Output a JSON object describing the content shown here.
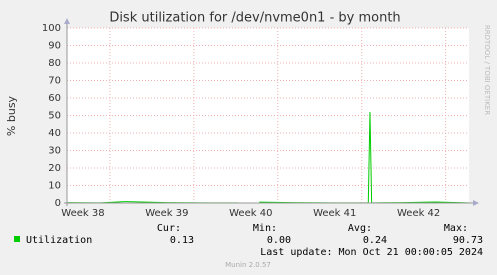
{
  "chart_data": {
    "type": "line",
    "title": "Disk utilization for /dev/nvme0n1 - by month",
    "y_label": "% busy",
    "side_text": "RRDTOOL / TOBI OETIKER",
    "xlim": [
      37.81,
      42.6
    ],
    "xticks": [
      {
        "value": 38,
        "label": "Week 38"
      },
      {
        "value": 39,
        "label": "Week 39"
      },
      {
        "value": 40,
        "label": "Week 40"
      },
      {
        "value": 41,
        "label": "Week 41"
      },
      {
        "value": 42,
        "label": "Week 42"
      }
    ],
    "ylim": [
      0,
      100
    ],
    "yticks": [
      0,
      10,
      20,
      30,
      40,
      50,
      60,
      70,
      80,
      90,
      100
    ],
    "grid": true,
    "x": [
      37.81,
      38.2,
      38.5,
      39.0,
      39.5,
      39.85,
      39.95,
      40.1,
      40.5,
      41.0,
      41.4,
      41.42,
      41.44,
      41.8,
      42.2,
      42.6
    ],
    "series": [
      {
        "name": "Utilization",
        "color": "#00cc00",
        "values": [
          0.2,
          0.1,
          0.8,
          0.2,
          0.1,
          0.1,
          null,
          0.5,
          0.2,
          0.1,
          0.1,
          52,
          0.1,
          0.2,
          0.6,
          0.1
        ]
      }
    ],
    "legend_headers": [
      "Cur:",
      "Min:",
      "Avg:",
      "Max:"
    ],
    "legend_stats": [
      "0.13",
      "0.00",
      "0.24",
      "90.73"
    ],
    "last_update": "Last update: Mon Oct 21 00:00:05 2024",
    "footer": "Munin 2.0.57"
  }
}
